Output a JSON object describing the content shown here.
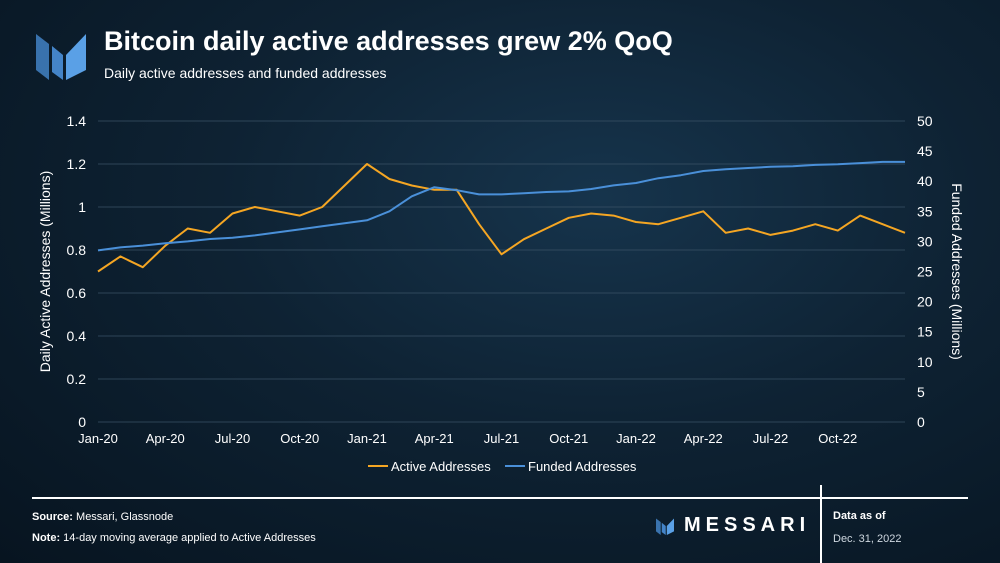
{
  "header": {
    "title": "Bitcoin daily active addresses grew 2% QoQ",
    "subtitle": "Daily active addresses and funded addresses"
  },
  "footer": {
    "source_label": "Source:",
    "source_text": "Messari, Glassnode",
    "note_label": "Note:",
    "note_text": "14-day moving average applied to Active Addresses",
    "brand": "MESSARI",
    "as_of_label": "Data as of",
    "as_of_date": "Dec. 31, 2022"
  },
  "colors": {
    "active": "#f5a623",
    "funded": "#4a90d9",
    "grid": "#3a5266",
    "logo": "#4a90d9"
  },
  "chart_data": {
    "type": "line",
    "xlabel": "",
    "ylabel": "Daily Active Addresses (Millions)",
    "y2label": "Funded Addresses (Millions)",
    "ylim": [
      0,
      1.4
    ],
    "y2lim": [
      0,
      50
    ],
    "yticks": [
      "0",
      "0.2",
      "0.4",
      "0.6",
      "0.8",
      "1",
      "1.2",
      "1.4"
    ],
    "y2ticks": [
      "0",
      "5",
      "10",
      "15",
      "20",
      "25",
      "30",
      "35",
      "40",
      "45",
      "50"
    ],
    "xticks": [
      "Jan-20",
      "Apr-20",
      "Jul-20",
      "Oct-20",
      "Jan-21",
      "Apr-21",
      "Jul-21",
      "Oct-21",
      "Jan-22",
      "Apr-22",
      "Jul-22",
      "Oct-22"
    ],
    "x_months": [
      "Jan-20",
      "Feb-20",
      "Mar-20",
      "Apr-20",
      "May-20",
      "Jun-20",
      "Jul-20",
      "Aug-20",
      "Sep-20",
      "Oct-20",
      "Nov-20",
      "Dec-20",
      "Jan-21",
      "Feb-21",
      "Mar-21",
      "Apr-21",
      "May-21",
      "Jun-21",
      "Jul-21",
      "Aug-21",
      "Sep-21",
      "Oct-21",
      "Nov-21",
      "Dec-21",
      "Jan-22",
      "Feb-22",
      "Mar-22",
      "Apr-22",
      "May-22",
      "Jun-22",
      "Jul-22",
      "Aug-22",
      "Sep-22",
      "Oct-22",
      "Nov-22",
      "Dec-22",
      "Jan-23"
    ],
    "grid": true,
    "legend": "bottom-center",
    "series": [
      {
        "name": "Active Addresses",
        "axis": "left",
        "values": [
          0.7,
          0.77,
          0.72,
          0.82,
          0.9,
          0.88,
          0.97,
          1.0,
          0.98,
          0.96,
          1.0,
          1.1,
          1.2,
          1.13,
          1.1,
          1.08,
          1.08,
          0.92,
          0.78,
          0.85,
          0.9,
          0.95,
          0.97,
          0.96,
          0.93,
          0.92,
          0.95,
          0.98,
          0.88,
          0.9,
          0.87,
          0.89,
          0.92,
          0.89,
          0.96,
          0.92,
          0.88
        ]
      },
      {
        "name": "Funded Addresses",
        "axis": "right",
        "values": [
          28.5,
          29,
          29.3,
          29.7,
          30,
          30.4,
          30.6,
          31,
          31.5,
          32,
          32.5,
          33,
          33.5,
          35,
          37.5,
          39,
          38.5,
          37.8,
          37.8,
          38,
          38.2,
          38.3,
          38.7,
          39.3,
          39.7,
          40.5,
          41,
          41.7,
          42,
          42.2,
          42.4,
          42.5,
          42.7,
          42.8,
          43,
          43.2,
          43.2
        ]
      }
    ]
  }
}
